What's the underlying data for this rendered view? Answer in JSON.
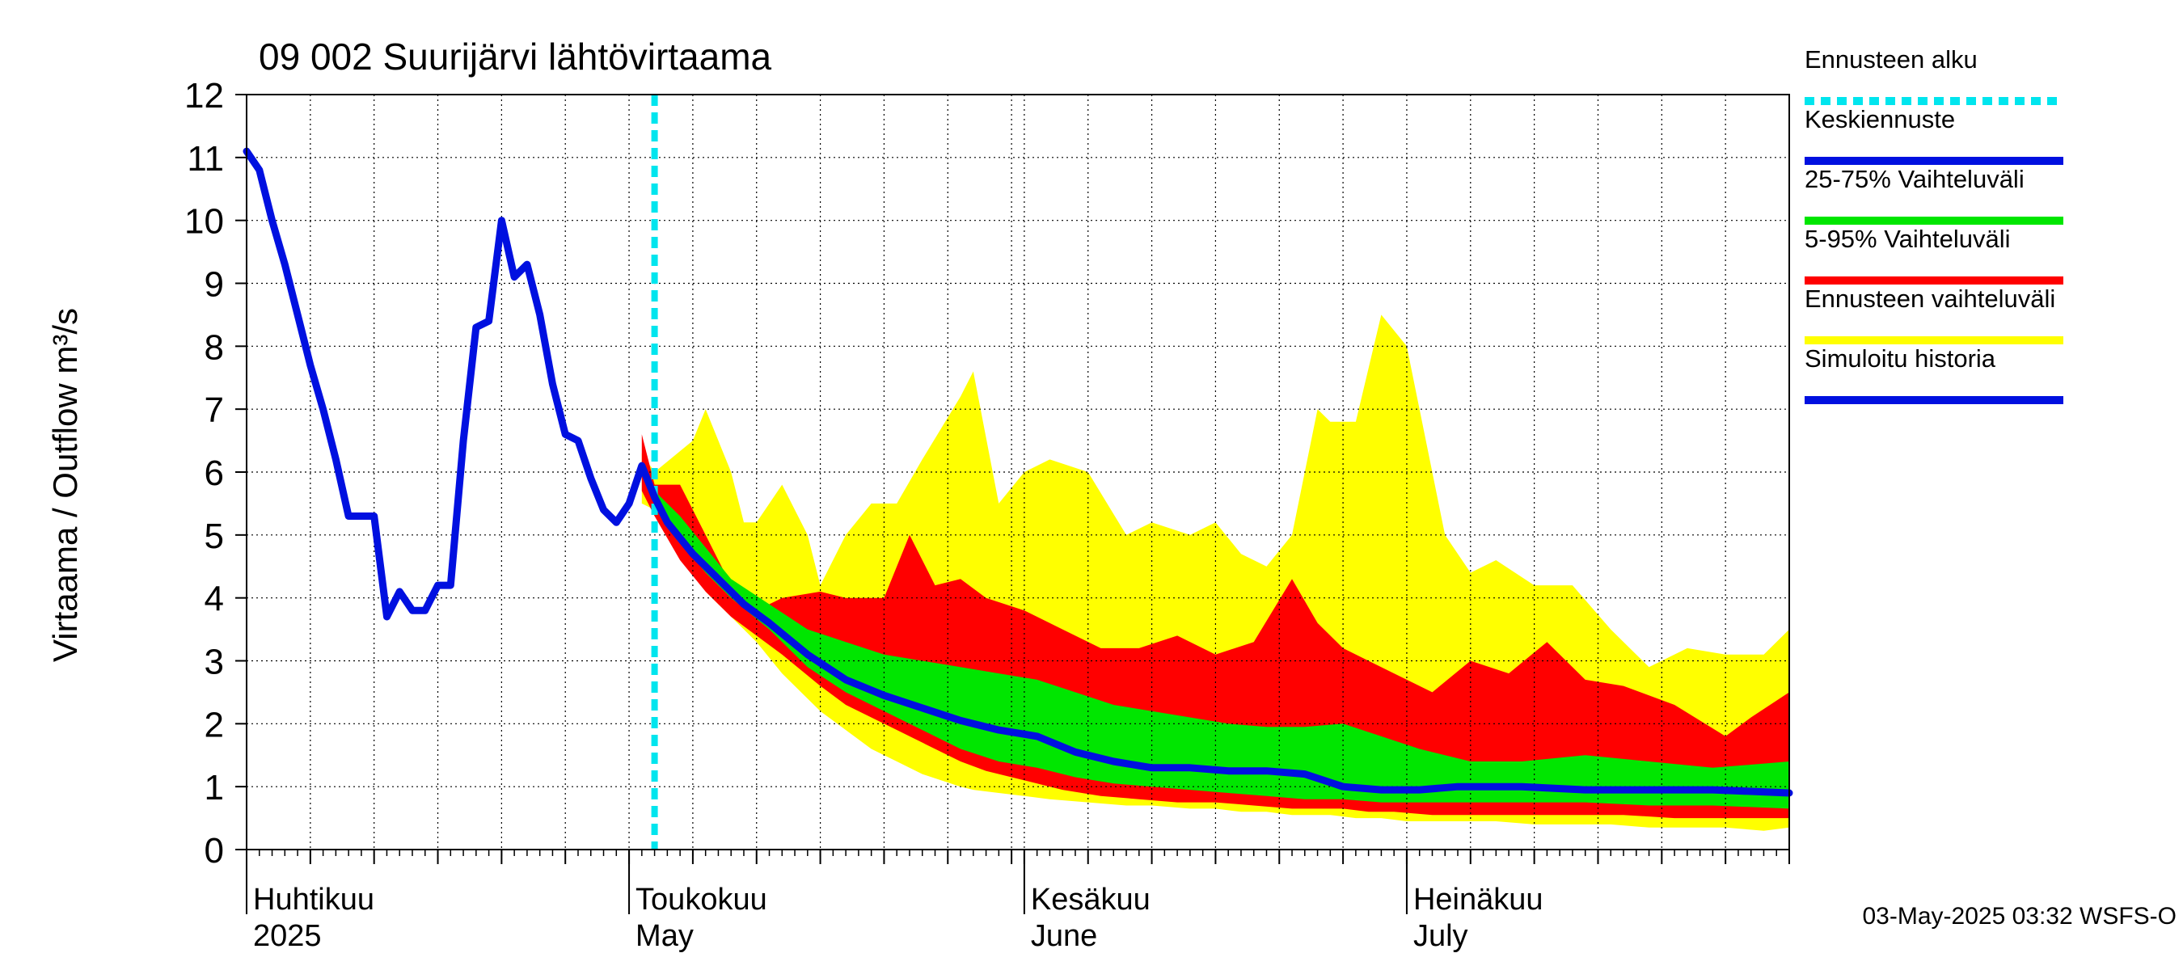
{
  "chart_data": {
    "type": "area",
    "title": "09 002 Suurijärvi lähtövirtaama",
    "ylabel": "Virtaama / Outflow    m³/s",
    "xlabel": "",
    "ylim": [
      0,
      12
    ],
    "yticks": [
      "0",
      "1",
      "2",
      "3",
      "4",
      "5",
      "6",
      "7",
      "8",
      "9",
      "10",
      "11",
      "12"
    ],
    "xlim": [
      "2025-04-01",
      "2025-07-31"
    ],
    "month_labels": [
      {
        "fi": "Huhtikuu",
        "en": "2025",
        "date": "2025-04-01"
      },
      {
        "fi": "Toukokuu",
        "en": "May",
        "date": "2025-05-01"
      },
      {
        "fi": "Kesäkuu",
        "en": "June",
        "date": "2025-06-01"
      },
      {
        "fi": "Heinäkuu",
        "en": "July",
        "date": "2025-07-01"
      }
    ],
    "forecast_start": "2025-05-03",
    "footer": "03-May-2025 03:32 WSFS-O",
    "legend_position": "right",
    "legend": [
      {
        "label": "Ennusteen alku",
        "color": "#00e5ee",
        "style": "dotted"
      },
      {
        "label": "Keskiennuste",
        "color": "#0010e0",
        "style": "line"
      },
      {
        "label": "25-75% Vaihteluväli",
        "color": "#00e600",
        "style": "line"
      },
      {
        "label": "5-95% Vaihteluväli",
        "color": "#ff0000",
        "style": "line"
      },
      {
        "label": "Ennusteen vaihteluväli",
        "color": "#ffff00",
        "style": "line"
      },
      {
        "label": "Simuloitu historia",
        "color": "#0010e0",
        "style": "line"
      }
    ],
    "colors": {
      "history": "#0010e0",
      "median": "#0010e0",
      "band_25_75": "#00e600",
      "band_5_95": "#ff0000",
      "band_full": "#ffff00",
      "forecast_start": "#00e5ee"
    },
    "series": [
      {
        "name": "Simuloitu historia",
        "x": [
          "2025-04-01",
          "2025-04-02",
          "2025-04-03",
          "2025-04-04",
          "2025-04-05",
          "2025-04-06",
          "2025-04-07",
          "2025-04-08",
          "2025-04-09",
          "2025-04-10",
          "2025-04-11",
          "2025-04-12",
          "2025-04-13",
          "2025-04-14",
          "2025-04-15",
          "2025-04-16",
          "2025-04-17",
          "2025-04-18",
          "2025-04-19",
          "2025-04-20",
          "2025-04-21",
          "2025-04-22",
          "2025-04-23",
          "2025-04-24",
          "2025-04-25",
          "2025-04-26",
          "2025-04-27",
          "2025-04-28",
          "2025-04-29",
          "2025-04-30",
          "2025-05-01",
          "2025-05-02",
          "2025-05-03"
        ],
        "values": [
          11.1,
          10.8,
          10.0,
          9.3,
          8.5,
          7.7,
          7.0,
          6.2,
          5.3,
          5.3,
          5.3,
          3.7,
          4.1,
          3.8,
          3.8,
          4.2,
          4.2,
          6.5,
          8.3,
          8.4,
          10.0,
          9.1,
          9.3,
          8.5,
          7.4,
          6.6,
          6.5,
          5.9,
          5.4,
          5.2,
          5.5,
          6.1,
          5.6
        ]
      },
      {
        "name": "Keskiennuste",
        "x": [
          "2025-05-03",
          "2025-05-04",
          "2025-05-06",
          "2025-05-08",
          "2025-05-10",
          "2025-05-12",
          "2025-05-15",
          "2025-05-18",
          "2025-05-21",
          "2025-05-24",
          "2025-05-27",
          "2025-05-30",
          "2025-06-02",
          "2025-06-05",
          "2025-06-08",
          "2025-06-11",
          "2025-06-14",
          "2025-06-17",
          "2025-06-20",
          "2025-06-23",
          "2025-06-26",
          "2025-06-29",
          "2025-07-02",
          "2025-07-05",
          "2025-07-10",
          "2025-07-15",
          "2025-07-20",
          "2025-07-25",
          "2025-07-31"
        ],
        "values": [
          5.6,
          5.2,
          4.7,
          4.3,
          3.9,
          3.6,
          3.1,
          2.7,
          2.45,
          2.25,
          2.05,
          1.9,
          1.8,
          1.55,
          1.4,
          1.3,
          1.3,
          1.25,
          1.25,
          1.2,
          1.0,
          0.95,
          0.95,
          1.0,
          1.0,
          0.95,
          0.95,
          0.95,
          0.9
        ]
      }
    ],
    "bands": [
      {
        "name": "Ennusteen vaihteluväli",
        "x": [
          "2025-05-02",
          "2025-05-03",
          "2025-05-06",
          "2025-05-07",
          "2025-05-09",
          "2025-05-10",
          "2025-05-11",
          "2025-05-13",
          "2025-05-15",
          "2025-05-16",
          "2025-05-18",
          "2025-05-20",
          "2025-05-22",
          "2025-05-24",
          "2025-05-27",
          "2025-05-28",
          "2025-05-30",
          "2025-06-01",
          "2025-06-03",
          "2025-06-06",
          "2025-06-09",
          "2025-06-11",
          "2025-06-14",
          "2025-06-16",
          "2025-06-18",
          "2025-06-20",
          "2025-06-22",
          "2025-06-24",
          "2025-06-25",
          "2025-06-27",
          "2025-06-29",
          "2025-07-01",
          "2025-07-02",
          "2025-07-04",
          "2025-07-06",
          "2025-07-08",
          "2025-07-11",
          "2025-07-14",
          "2025-07-17",
          "2025-07-20",
          "2025-07-23",
          "2025-07-26",
          "2025-07-29",
          "2025-07-31"
        ],
        "upper": [
          6.3,
          6.0,
          6.5,
          7.0,
          6.0,
          5.2,
          5.2,
          5.8,
          5.0,
          4.2,
          5.0,
          5.5,
          5.5,
          6.2,
          7.2,
          7.6,
          5.5,
          6.0,
          6.2,
          6.0,
          5.0,
          5.2,
          5.0,
          5.2,
          4.7,
          4.5,
          5.0,
          7.0,
          6.8,
          6.8,
          8.5,
          8.0,
          7.0,
          5.0,
          4.4,
          4.6,
          4.2,
          4.2,
          3.5,
          2.9,
          3.2,
          3.1,
          3.1,
          3.5
        ],
        "lower": [
          5.5,
          5.4,
          4.5,
          4.1,
          3.7,
          3.5,
          3.3,
          2.8,
          2.4,
          2.2,
          1.9,
          1.6,
          1.4,
          1.2,
          1.0,
          0.95,
          0.9,
          0.85,
          0.8,
          0.75,
          0.7,
          0.7,
          0.65,
          0.65,
          0.6,
          0.6,
          0.55,
          0.55,
          0.55,
          0.5,
          0.5,
          0.45,
          0.45,
          0.45,
          0.45,
          0.45,
          0.4,
          0.4,
          0.4,
          0.35,
          0.35,
          0.35,
          0.3,
          0.35
        ]
      },
      {
        "name": "5-95% Vaihteluväli",
        "x": [
          "2025-05-02",
          "2025-05-03",
          "2025-05-05",
          "2025-05-07",
          "2025-05-09",
          "2025-05-11",
          "2025-05-13",
          "2025-05-16",
          "2025-05-18",
          "2025-05-21",
          "2025-05-23",
          "2025-05-25",
          "2025-05-27",
          "2025-05-29",
          "2025-06-01",
          "2025-06-04",
          "2025-06-07",
          "2025-06-10",
          "2025-06-13",
          "2025-06-16",
          "2025-06-19",
          "2025-06-22",
          "2025-06-24",
          "2025-06-26",
          "2025-06-28",
          "2025-06-30",
          "2025-07-03",
          "2025-07-06",
          "2025-07-09",
          "2025-07-12",
          "2025-07-15",
          "2025-07-18",
          "2025-07-22",
          "2025-07-26",
          "2025-07-28",
          "2025-07-31"
        ],
        "upper": [
          6.6,
          5.8,
          5.8,
          5.0,
          4.2,
          3.8,
          4.0,
          4.1,
          4.0,
          4.0,
          5.0,
          4.2,
          4.3,
          4.0,
          3.8,
          3.5,
          3.2,
          3.2,
          3.4,
          3.1,
          3.3,
          4.3,
          3.6,
          3.2,
          3.0,
          2.8,
          2.5,
          3.0,
          2.8,
          3.3,
          2.7,
          2.6,
          2.3,
          1.8,
          2.1,
          2.5
        ],
        "lower": [
          5.7,
          5.3,
          4.6,
          4.1,
          3.7,
          3.4,
          3.1,
          2.6,
          2.3,
          2.0,
          1.8,
          1.6,
          1.4,
          1.25,
          1.1,
          0.95,
          0.85,
          0.8,
          0.75,
          0.75,
          0.7,
          0.65,
          0.65,
          0.65,
          0.6,
          0.6,
          0.55,
          0.55,
          0.55,
          0.55,
          0.55,
          0.55,
          0.5,
          0.5,
          0.5,
          0.5
        ]
      },
      {
        "name": "25-75% Vaihteluväli",
        "x": [
          "2025-05-03",
          "2025-05-05",
          "2025-05-07",
          "2025-05-09",
          "2025-05-12",
          "2025-05-15",
          "2025-05-18",
          "2025-05-21",
          "2025-05-24",
          "2025-05-27",
          "2025-05-30",
          "2025-06-02",
          "2025-06-05",
          "2025-06-08",
          "2025-06-11",
          "2025-06-14",
          "2025-06-17",
          "2025-06-20",
          "2025-06-23",
          "2025-06-26",
          "2025-06-29",
          "2025-07-02",
          "2025-07-06",
          "2025-07-10",
          "2025-07-15",
          "2025-07-20",
          "2025-07-25",
          "2025-07-31"
        ],
        "upper": [
          5.7,
          5.3,
          4.8,
          4.3,
          3.9,
          3.5,
          3.3,
          3.1,
          3.0,
          2.9,
          2.8,
          2.7,
          2.5,
          2.3,
          2.2,
          2.1,
          2.0,
          1.95,
          1.95,
          2.0,
          1.8,
          1.6,
          1.4,
          1.4,
          1.5,
          1.4,
          1.3,
          1.4
        ],
        "lower": [
          5.5,
          4.9,
          4.4,
          4.0,
          3.5,
          2.9,
          2.5,
          2.2,
          1.9,
          1.6,
          1.4,
          1.3,
          1.15,
          1.05,
          1.0,
          0.95,
          0.9,
          0.85,
          0.8,
          0.8,
          0.75,
          0.75,
          0.75,
          0.75,
          0.75,
          0.7,
          0.7,
          0.65
        ]
      }
    ]
  }
}
